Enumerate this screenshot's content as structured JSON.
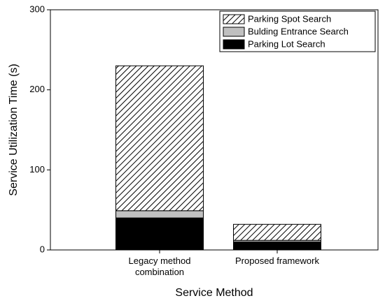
{
  "chart_data": {
    "type": "stacked-bar",
    "x_label": "Service Method",
    "y_label": "Service Utilization Time (s)",
    "categories": [
      "Legacy method combination",
      "Proposed framework"
    ],
    "series": [
      {
        "name": "Parking Lot Search",
        "color": "#000000",
        "pattern": "solid",
        "values": [
          40,
          10
        ]
      },
      {
        "name": "Bulding Entrance Search",
        "color": "#c0c0c0",
        "pattern": "solid",
        "values": [
          9,
          2
        ]
      },
      {
        "name": "Parking Spot Search",
        "color": "#000000",
        "pattern": "hatch",
        "values": [
          181,
          20
        ]
      }
    ],
    "ylim": [
      0,
      300
    ],
    "yticks": [
      0,
      100,
      200,
      300
    ],
    "grid": false,
    "legend": "upper right"
  }
}
